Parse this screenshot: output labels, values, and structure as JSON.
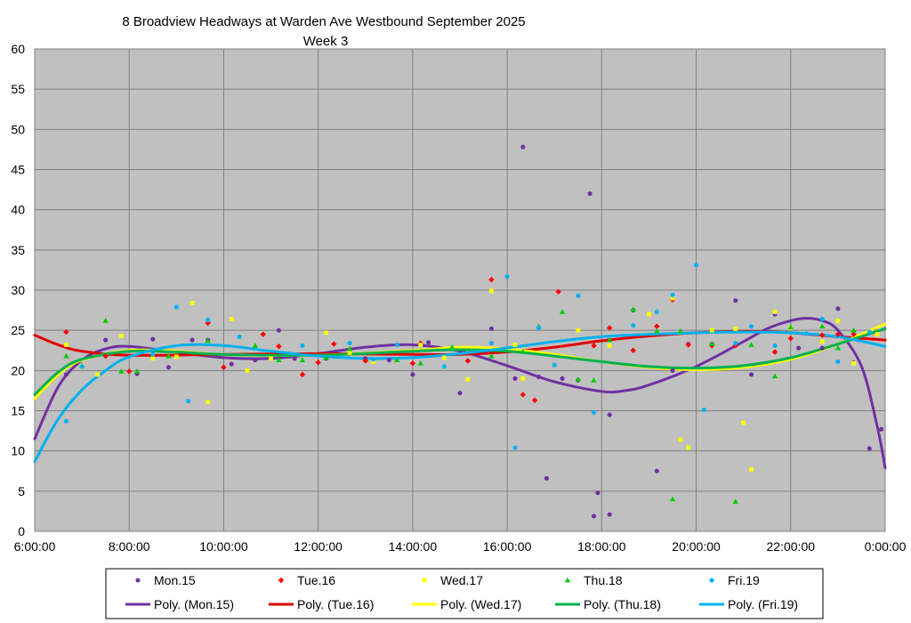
{
  "chart_data": {
    "type": "scatter",
    "title": "8 Broadview Headways at Warden Ave Westbound September 2025",
    "subtitle": "Week 3",
    "xlabel": "",
    "ylabel": "",
    "xlim": [
      "6:00:00",
      "0:00:00"
    ],
    "ylim": [
      0,
      60
    ],
    "x_ticks": [
      "6:00:00",
      "8:00:00",
      "10:00:00",
      "12:00:00",
      "14:00:00",
      "16:00:00",
      "18:00:00",
      "20:00:00",
      "22:00:00",
      "0:00:00"
    ],
    "y_ticks": [
      "0",
      "5",
      "10",
      "15",
      "20",
      "25",
      "30",
      "35",
      "40",
      "45",
      "50",
      "55",
      "60"
    ],
    "grid": true,
    "plot_background": "#c0c0c0",
    "legend_position": "bottom",
    "series": [
      {
        "name": "Mon.15",
        "color": "#7030a0",
        "marker": "circle",
        "points": [
          [
            "6:40",
            19.5
          ],
          [
            "7:30",
            23.8
          ],
          [
            "8:10",
            19.6
          ],
          [
            "8:30",
            23.9
          ],
          [
            "8:50",
            20.4
          ],
          [
            "9:20",
            23.8
          ],
          [
            "9:40",
            23.8
          ],
          [
            "10:10",
            20.8
          ],
          [
            "10:40",
            21.3
          ],
          [
            "11:10",
            25
          ],
          [
            "11:30",
            21.5
          ],
          [
            "12:10",
            21.5
          ],
          [
            "13:00",
            21.5
          ],
          [
            "13:30",
            21.3
          ],
          [
            "14:00",
            19.5
          ],
          [
            "14:20",
            23.5
          ],
          [
            "15:00",
            17.2
          ],
          [
            "15:40",
            25.2
          ],
          [
            "16:10",
            19
          ],
          [
            "16:20",
            47.8
          ],
          [
            "16:40",
            19.2
          ],
          [
            "16:50",
            6.6
          ],
          [
            "17:10",
            19
          ],
          [
            "17:30",
            18.8
          ],
          [
            "17:45",
            42
          ],
          [
            "17:50",
            1.9
          ],
          [
            "17:55",
            4.8
          ],
          [
            "18:10",
            2.1
          ],
          [
            "18:10",
            14.5
          ],
          [
            "18:40",
            27.5
          ],
          [
            "19:10",
            7.5
          ],
          [
            "19:30",
            20
          ],
          [
            "19:50",
            23.3
          ],
          [
            "20:20",
            23.3
          ],
          [
            "20:50",
            28.7
          ],
          [
            "21:10",
            19.5
          ],
          [
            "21:40",
            27
          ],
          [
            "22:10",
            22.8
          ],
          [
            "22:40",
            22.8
          ],
          [
            "23:00",
            27.7
          ],
          [
            "23:20",
            21
          ],
          [
            "23:40",
            10.3
          ],
          [
            "23:55",
            12.7
          ]
        ]
      },
      {
        "name": "Tue.16",
        "color": "#ff0000",
        "marker": "diamond",
        "points": [
          [
            "6:40",
            24.8
          ],
          [
            "7:30",
            21.8
          ],
          [
            "8:00",
            19.9
          ],
          [
            "8:30",
            21.7
          ],
          [
            "9:40",
            25.9
          ],
          [
            "10:00",
            20.4
          ],
          [
            "10:50",
            24.5
          ],
          [
            "11:10",
            23
          ],
          [
            "11:40",
            19.5
          ],
          [
            "12:00",
            21
          ],
          [
            "12:20",
            23.3
          ],
          [
            "13:00",
            21.2
          ],
          [
            "14:00",
            20.9
          ],
          [
            "14:10",
            23.4
          ],
          [
            "15:10",
            21.2
          ],
          [
            "15:40",
            31.3
          ],
          [
            "16:20",
            17
          ],
          [
            "16:35",
            16.3
          ],
          [
            "17:05",
            29.8
          ],
          [
            "17:50",
            23.1
          ],
          [
            "18:10",
            25.3
          ],
          [
            "18:40",
            22.5
          ],
          [
            "19:10",
            25.5
          ],
          [
            "19:30",
            28.8
          ],
          [
            "19:50",
            23.2
          ],
          [
            "20:20",
            23.1
          ],
          [
            "20:50",
            23.1
          ],
          [
            "21:40",
            22.3
          ],
          [
            "22:00",
            24
          ],
          [
            "22:40",
            24.4
          ],
          [
            "23:00",
            24.5
          ],
          [
            "23:20",
            24.5
          ]
        ]
      },
      {
        "name": "Wed.17",
        "color": "#ffff00",
        "marker": "square",
        "points": [
          [
            "6:40",
            23.2
          ],
          [
            "7:00",
            20.5
          ],
          [
            "7:20",
            19.5
          ],
          [
            "7:50",
            24.3
          ],
          [
            "8:30",
            21.5
          ],
          [
            "9:00",
            21.7
          ],
          [
            "9:20",
            28.4
          ],
          [
            "9:40",
            16.1
          ],
          [
            "10:10",
            26.4
          ],
          [
            "10:30",
            20
          ],
          [
            "11:00",
            21.5
          ],
          [
            "12:10",
            24.7
          ],
          [
            "12:40",
            22.2
          ],
          [
            "13:10",
            21.1
          ],
          [
            "14:10",
            23.2
          ],
          [
            "14:40",
            21.6
          ],
          [
            "15:10",
            18.9
          ],
          [
            "15:40",
            29.9
          ],
          [
            "16:10",
            23.2
          ],
          [
            "16:20",
            19
          ],
          [
            "17:30",
            25
          ],
          [
            "18:10",
            23.1
          ],
          [
            "19:00",
            27
          ],
          [
            "19:30",
            29
          ],
          [
            "19:40",
            11.4
          ],
          [
            "19:50",
            10.4
          ],
          [
            "20:20",
            25
          ],
          [
            "20:50",
            25.2
          ],
          [
            "21:00",
            13.5
          ],
          [
            "21:10",
            7.7
          ],
          [
            "21:40",
            27.3
          ],
          [
            "22:00",
            25.3
          ],
          [
            "22:40",
            23.6
          ],
          [
            "23:00",
            26.2
          ],
          [
            "23:20",
            20.9
          ],
          [
            "23:50",
            24.5
          ]
        ]
      },
      {
        "name": "Thu.18",
        "color": "#00cc00",
        "marker": "triangle",
        "points": [
          [
            "6:40",
            21.8
          ],
          [
            "7:00",
            20.6
          ],
          [
            "7:30",
            26.2
          ],
          [
            "7:50",
            19.9
          ],
          [
            "8:10",
            19.9
          ],
          [
            "8:50",
            21.8
          ],
          [
            "9:40",
            23.7
          ],
          [
            "10:40",
            23.1
          ],
          [
            "11:10",
            21.3
          ],
          [
            "11:40",
            21.3
          ],
          [
            "12:10",
            21.6
          ],
          [
            "12:40",
            22.7
          ],
          [
            "13:40",
            21.3
          ],
          [
            "14:10",
            20.9
          ],
          [
            "14:50",
            22.9
          ],
          [
            "15:40",
            21.8
          ],
          [
            "16:20",
            22.4
          ],
          [
            "16:40",
            25.5
          ],
          [
            "17:10",
            27.3
          ],
          [
            "17:30",
            18.9
          ],
          [
            "17:50",
            18.8
          ],
          [
            "18:10",
            23.8
          ],
          [
            "18:40",
            27.6
          ],
          [
            "19:10",
            24.9
          ],
          [
            "19:30",
            4
          ],
          [
            "19:40",
            24.9
          ],
          [
            "20:20",
            23.3
          ],
          [
            "20:50",
            3.7
          ],
          [
            "21:10",
            23.2
          ],
          [
            "21:40",
            19.3
          ],
          [
            "22:00",
            25.4
          ],
          [
            "22:40",
            25.5
          ],
          [
            "23:00",
            22.8
          ],
          [
            "23:20",
            25
          ]
        ]
      },
      {
        "name": "Fri.19",
        "color": "#00b0f0",
        "marker": "circle",
        "points": [
          [
            "6:40",
            13.7
          ],
          [
            "7:00",
            20.5
          ],
          [
            "8:30",
            22
          ],
          [
            "9:00",
            27.9
          ],
          [
            "9:15",
            16.2
          ],
          [
            "9:40",
            26.3
          ],
          [
            "10:20",
            24.2
          ],
          [
            "11:40",
            23.1
          ],
          [
            "12:40",
            23.4
          ],
          [
            "13:10",
            21.4
          ],
          [
            "13:40",
            23.2
          ],
          [
            "14:40",
            20.5
          ],
          [
            "15:40",
            23.4
          ],
          [
            "16:00",
            31.7
          ],
          [
            "16:10",
            10.4
          ],
          [
            "16:40",
            25.3
          ],
          [
            "17:00",
            20.7
          ],
          [
            "17:30",
            29.3
          ],
          [
            "17:50",
            14.8
          ],
          [
            "18:40",
            25.6
          ],
          [
            "19:10",
            27.3
          ],
          [
            "19:30",
            29.4
          ],
          [
            "20:00",
            33.1
          ],
          [
            "20:10",
            15.1
          ],
          [
            "20:50",
            23.4
          ],
          [
            "21:10",
            25.5
          ],
          [
            "21:40",
            23.1
          ],
          [
            "22:20",
            24.6
          ],
          [
            "22:40",
            26.4
          ],
          [
            "23:00",
            21.1
          ],
          [
            "23:40",
            24.8
          ]
        ]
      }
    ],
    "trendlines": [
      {
        "name": "Poly. (Mon.15)",
        "color": "#7030a0",
        "points": [
          [
            "6:00",
            11.5
          ],
          [
            "6:30",
            18
          ],
          [
            "7:00",
            21.3
          ],
          [
            "7:30",
            22.7
          ],
          [
            "8:00",
            23
          ],
          [
            "9:00",
            22.3
          ],
          [
            "10:00",
            21.6
          ],
          [
            "11:00",
            21.5
          ],
          [
            "12:00",
            22.1
          ],
          [
            "13:00",
            22.9
          ],
          [
            "14:00",
            23.2
          ],
          [
            "15:00",
            22.4
          ],
          [
            "16:00",
            20.6
          ],
          [
            "17:00",
            18.6
          ],
          [
            "18:00",
            17.4
          ],
          [
            "18:30",
            17.5
          ],
          [
            "19:00",
            18.2
          ],
          [
            "20:00",
            20.5
          ],
          [
            "21:00",
            23.6
          ],
          [
            "21:30",
            25.2
          ],
          [
            "22:00",
            26.2
          ],
          [
            "22:20",
            26.5
          ],
          [
            "22:40",
            26.2
          ],
          [
            "23:00",
            25
          ],
          [
            "23:30",
            20.5
          ],
          [
            "23:50",
            13
          ],
          [
            "0:00",
            7.9
          ]
        ]
      },
      {
        "name": "Poly. (Tue.16)",
        "color": "#e00000",
        "points": [
          [
            "6:00",
            24.4
          ],
          [
            "6:30",
            23.2
          ],
          [
            "7:00",
            22.4
          ],
          [
            "8:00",
            21.9
          ],
          [
            "10:00",
            22
          ],
          [
            "12:00",
            22.1
          ],
          [
            "14:00",
            22
          ],
          [
            "15:00",
            22
          ],
          [
            "16:00",
            22.3
          ],
          [
            "17:00",
            22.9
          ],
          [
            "18:00",
            23.7
          ],
          [
            "19:00",
            24.3
          ],
          [
            "20:00",
            24.7
          ],
          [
            "21:00",
            24.9
          ],
          [
            "22:00",
            24.7
          ],
          [
            "23:00",
            24.2
          ],
          [
            "0:00",
            23.8
          ]
        ]
      },
      {
        "name": "Poly. (Wed.17)",
        "color": "#ffff00",
        "points": [
          [
            "6:00",
            16.5
          ],
          [
            "6:30",
            19.5
          ],
          [
            "7:00",
            21.3
          ],
          [
            "8:00",
            22.5
          ],
          [
            "9:00",
            22.4
          ],
          [
            "10:00",
            22
          ],
          [
            "12:00",
            21.9
          ],
          [
            "14:00",
            22.5
          ],
          [
            "15:00",
            22.9
          ],
          [
            "16:00",
            22.7
          ],
          [
            "17:00",
            22
          ],
          [
            "18:00",
            21.1
          ],
          [
            "19:00",
            20.4
          ],
          [
            "20:00",
            20.1
          ],
          [
            "21:00",
            20.4
          ],
          [
            "22:00",
            21.4
          ],
          [
            "23:00",
            23.3
          ],
          [
            "0:00",
            25.8
          ]
        ]
      },
      {
        "name": "Poly. (Thu.18)",
        "color": "#00b050",
        "points": [
          [
            "6:00",
            17
          ],
          [
            "6:30",
            19.8
          ],
          [
            "7:00",
            21.4
          ],
          [
            "8:00",
            22.4
          ],
          [
            "9:00",
            22.3
          ],
          [
            "10:00",
            22
          ],
          [
            "12:00",
            21.9
          ],
          [
            "14:00",
            22.4
          ],
          [
            "15:00",
            22.6
          ],
          [
            "16:00",
            22.4
          ],
          [
            "17:00",
            21.8
          ],
          [
            "18:00",
            21.1
          ],
          [
            "19:00",
            20.5
          ],
          [
            "20:00",
            20.3
          ],
          [
            "21:00",
            20.6
          ],
          [
            "22:00",
            21.6
          ],
          [
            "23:00",
            23.3
          ],
          [
            "0:00",
            25.2
          ]
        ]
      },
      {
        "name": "Poly. (Fri.19)",
        "color": "#00b0f0",
        "points": [
          [
            "6:00",
            8.7
          ],
          [
            "6:30",
            14
          ],
          [
            "7:00",
            17.6
          ],
          [
            "7:30",
            20
          ],
          [
            "8:00",
            21.7
          ],
          [
            "9:00",
            23.1
          ],
          [
            "10:00",
            23.1
          ],
          [
            "11:00",
            22.4
          ],
          [
            "12:00",
            21.8
          ],
          [
            "13:00",
            21.5
          ],
          [
            "14:00",
            21.6
          ],
          [
            "15:00",
            22.1
          ],
          [
            "16:00",
            22.8
          ],
          [
            "17:00",
            23.6
          ],
          [
            "18:00",
            24.2
          ],
          [
            "19:00",
            24.5
          ],
          [
            "20:00",
            24.7
          ],
          [
            "21:00",
            24.8
          ],
          [
            "22:00",
            24.7
          ],
          [
            "23:00",
            24.2
          ],
          [
            "0:00",
            23
          ]
        ]
      }
    ]
  }
}
